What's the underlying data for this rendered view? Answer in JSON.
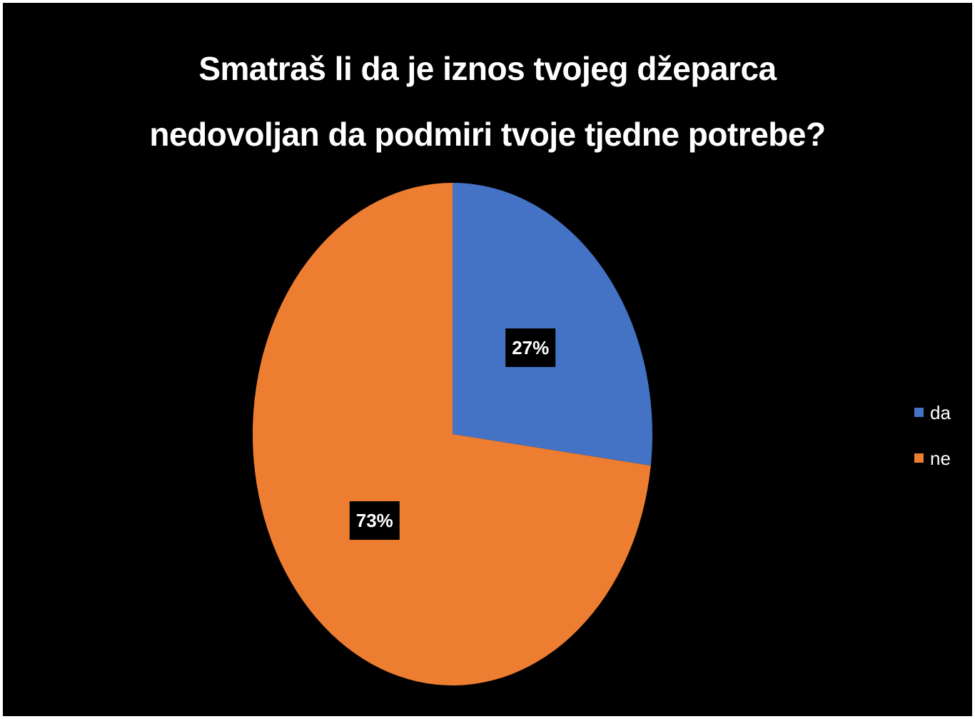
{
  "chart_data": {
    "type": "pie",
    "title": {
      "line1": "Smatraš li da je iznos tvojeg džeparca",
      "line2": "nedovoljan da podmiri tvoje tjedne potrebe?"
    },
    "categories": [
      "da",
      "ne"
    ],
    "values": [
      27,
      73
    ],
    "data_labels": [
      "27%",
      "73%"
    ],
    "colors": [
      "#4472C4",
      "#ED7D31"
    ],
    "legend": "right",
    "background": "#000000"
  }
}
